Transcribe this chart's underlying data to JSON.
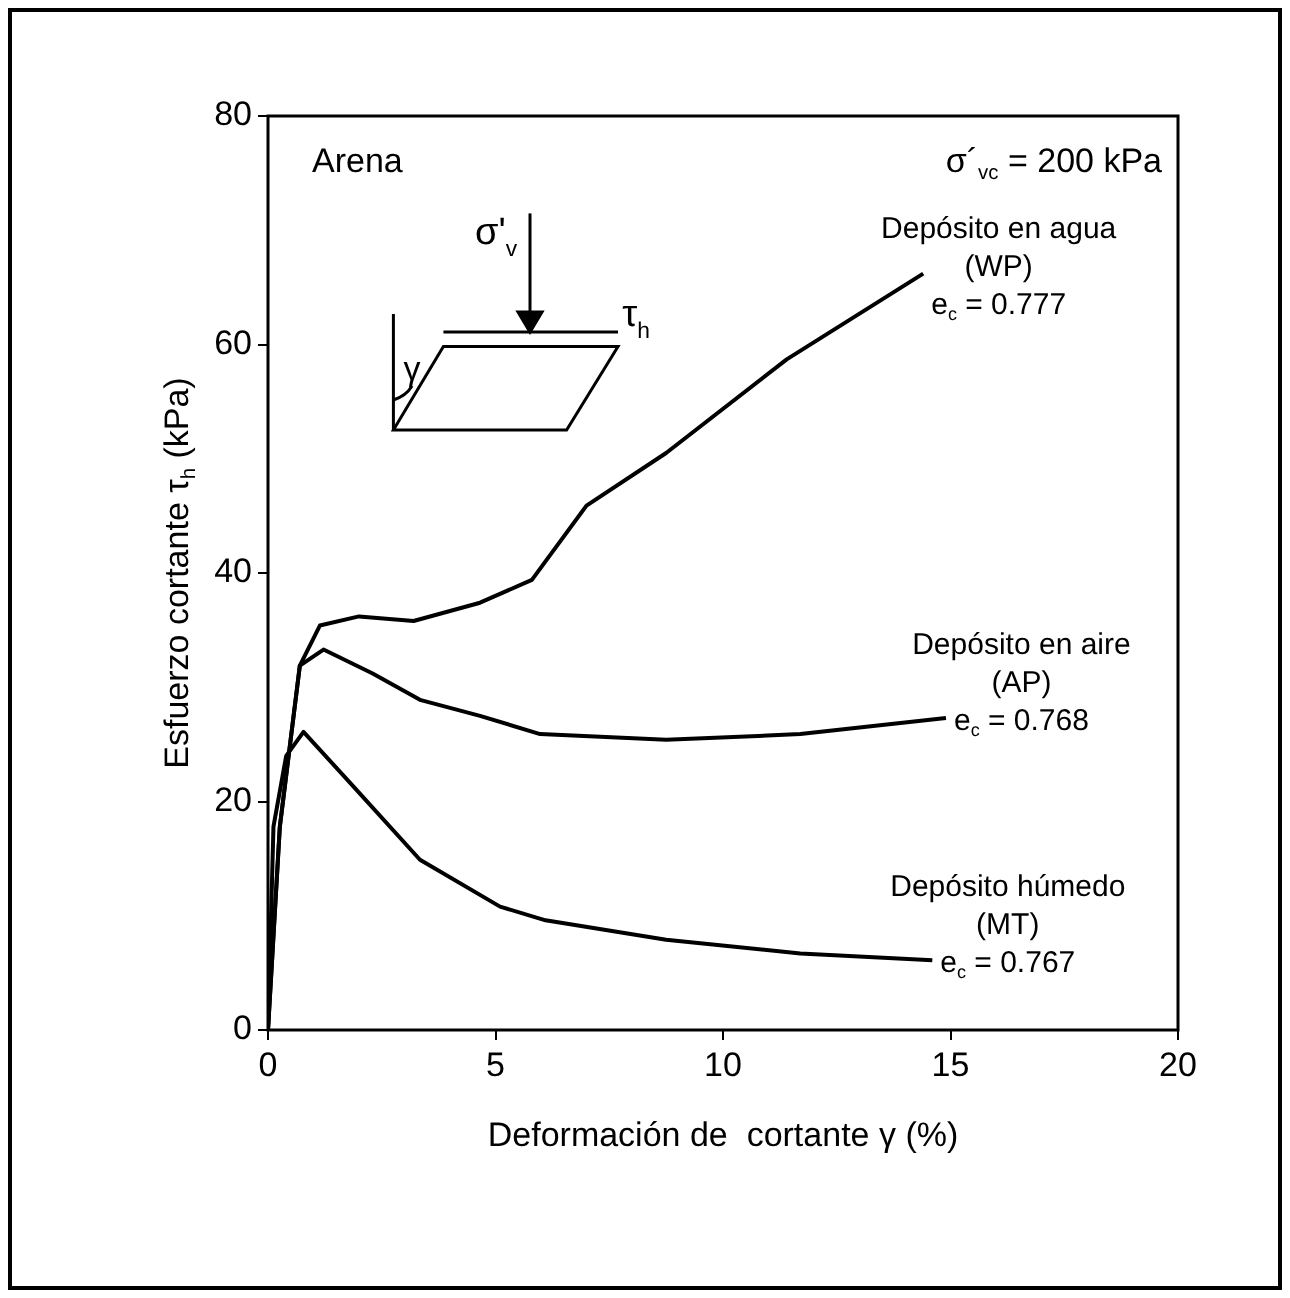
{
  "chart_data": {
    "type": "line",
    "xlabel": "Deformación de  cortante γ (%)",
    "ylabel": "Esfuerzo cortante τ$_{h}$ (kPa)",
    "xlim": [
      0,
      20
    ],
    "xticks": [
      0,
      5,
      10,
      15,
      20
    ],
    "ylim": [
      0,
      80
    ],
    "yticks": [
      0,
      20,
      40,
      60,
      80
    ],
    "marker": "none",
    "line_style": "solid",
    "series": [
      {
        "name": "Depósito en agua (WP)",
        "color": "#000000",
        "x": [
          0,
          0.26,
          0.7,
          1.14,
          2.0,
          3.2,
          4.66,
          5.8,
          7.0,
          8.75,
          11.4,
          14.4
        ],
        "values": [
          0,
          17.8,
          31.9,
          35.4,
          36.2,
          35.8,
          37.4,
          39.4,
          45.9,
          50.5,
          58.7,
          66.2
        ]
      },
      {
        "name": "Depósito en aire (AP)",
        "color": "#000000",
        "x": [
          0,
          0.26,
          0.7,
          1.22,
          2.3,
          3.34,
          4.66,
          5.98,
          8.75,
          11.7,
          14.9
        ],
        "values": [
          0,
          17.8,
          31.9,
          33.3,
          31.2,
          28.9,
          27.5,
          25.9,
          25.4,
          25.9,
          27.3
        ]
      },
      {
        "name": "Depósito húmedo (MT)",
        "color": "#000000",
        "x": [
          0,
          0.12,
          0.4,
          0.78,
          1.88,
          3.34,
          5.1,
          6.1,
          8.75,
          11.7,
          14.6
        ],
        "values": [
          0,
          17.8,
          24,
          26.1,
          21.3,
          14.9,
          10.8,
          9.6,
          7.9,
          6.7,
          6.1
        ]
      }
    ],
    "annotations": [
      "e$_{c}$ = 0.777",
      "e$_{c}$ = 0.768",
      "e$_{c}$ = 0.767",
      "Arena",
      "σ´$_{vc}$ = 200 kPa",
      "σ'$_{v}$",
      "τ$_{h}$",
      "γ"
    ]
  }
}
